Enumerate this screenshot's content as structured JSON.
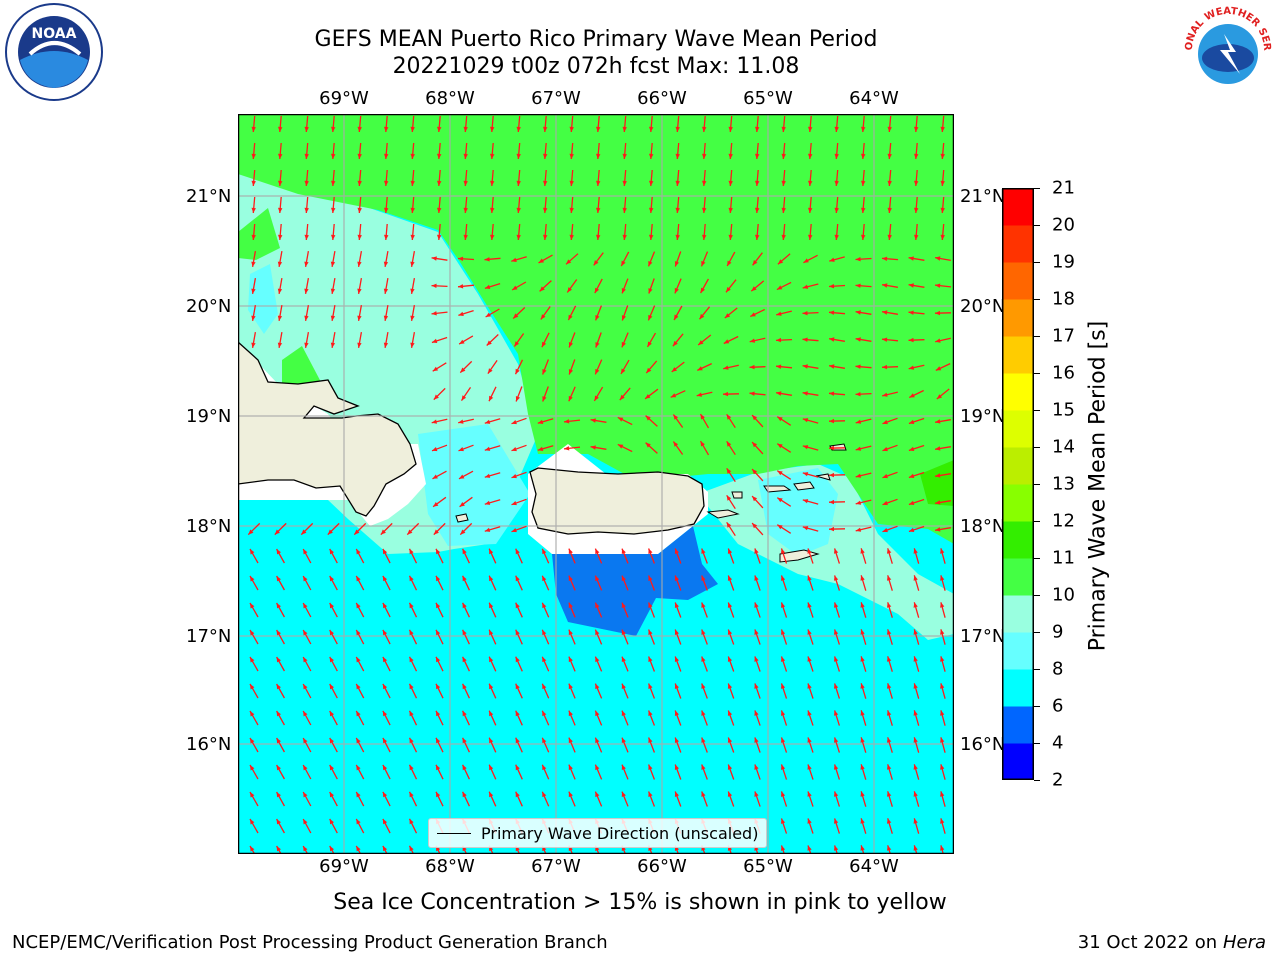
{
  "title_line1": "GEFS MEAN Puerto Rico Primary Wave Mean Period",
  "title_line2": "20221029 t00z 072h fcst   Max: 11.08",
  "lon_labels": [
    "69°W",
    "68°W",
    "67°W",
    "66°W",
    "65°W",
    "64°W"
  ],
  "lat_labels": [
    "21°N",
    "20°N",
    "19°N",
    "18°N",
    "17°N",
    "16°N"
  ],
  "colorbar": {
    "label": "Primary Wave Mean Period [s]",
    "ticks": [
      "2",
      "4",
      "6",
      "8",
      "9",
      "10",
      "11",
      "12",
      "13",
      "14",
      "15",
      "16",
      "17",
      "18",
      "19",
      "20",
      "21"
    ],
    "colors": [
      "#0000ff",
      "#0066ff",
      "#00ffff",
      "#66ffff",
      "#99ffe0",
      "#44ff44",
      "#33ee00",
      "#88ff00",
      "#bbee00",
      "#ddff00",
      "#ffff00",
      "#ffcc00",
      "#ff9900",
      "#ff6600",
      "#ff3300",
      "#ff0000"
    ]
  },
  "legend": {
    "label": "Primary Wave Direction (unscaled)"
  },
  "note": "Sea Ice Concentration > 15% is shown in pink to yellow",
  "footer_left": "NCEP/EMC/Verification Post Processing Product Generation Branch",
  "footer_right_prefix": "31 Oct 2022 on ",
  "footer_right_host": "Hera",
  "logos": {
    "noaa": "NOAA",
    "nws": "NATIONAL WEATHER SERVICE"
  }
}
